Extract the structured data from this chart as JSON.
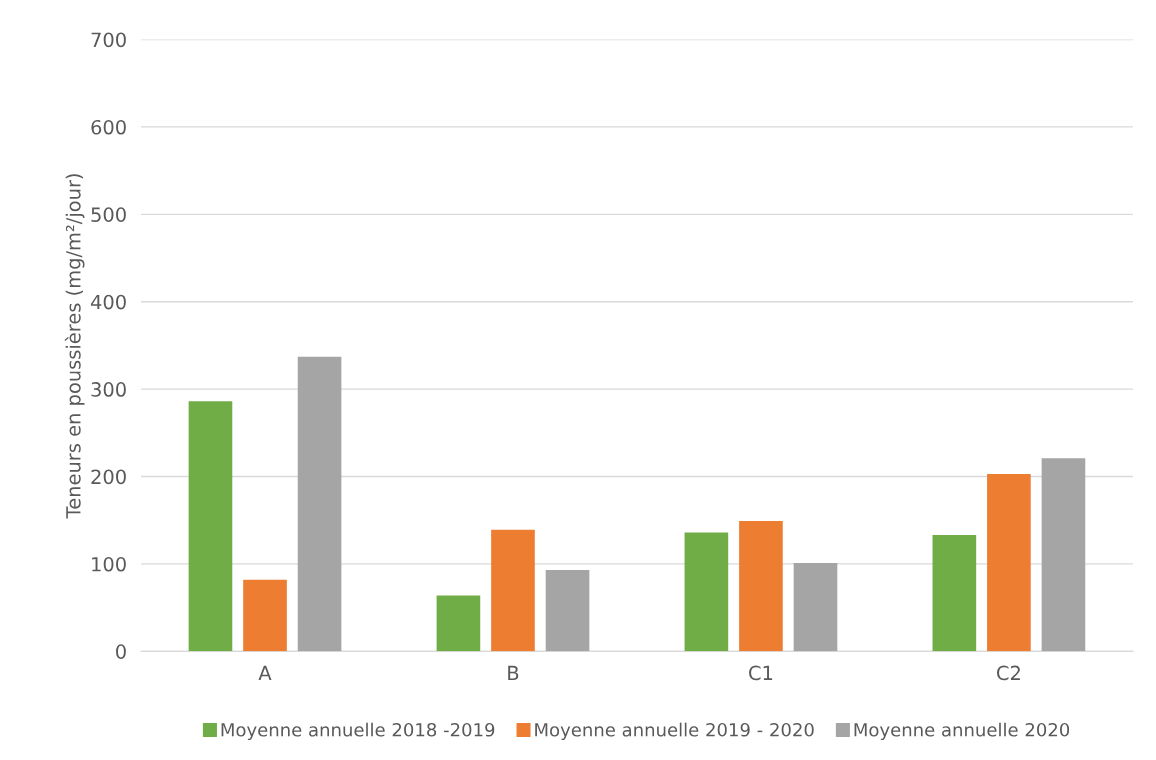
{
  "chart_data": {
    "type": "bar",
    "ylabel": "Teneurs en poussières (mg/m²/jour)",
    "categories": [
      "A",
      "B",
      "C1",
      "C2"
    ],
    "series": [
      {
        "name": "Moyenne annuelle 2018 -2019",
        "color": "#70ad47",
        "values": [
          286,
          64,
          136,
          133
        ]
      },
      {
        "name": "Moyenne annuelle 2019 - 2020",
        "color": "#ed7d31",
        "values": [
          82,
          139,
          149,
          203
        ]
      },
      {
        "name": "Moyenne annuelle 2020",
        "color": "#a5a5a5",
        "values": [
          337,
          93,
          101,
          221
        ]
      }
    ],
    "ylim": [
      0,
      700
    ],
    "yticks": [
      0,
      100,
      200,
      300,
      400,
      500,
      600,
      700
    ],
    "grid": "y",
    "legend": "bottom"
  }
}
